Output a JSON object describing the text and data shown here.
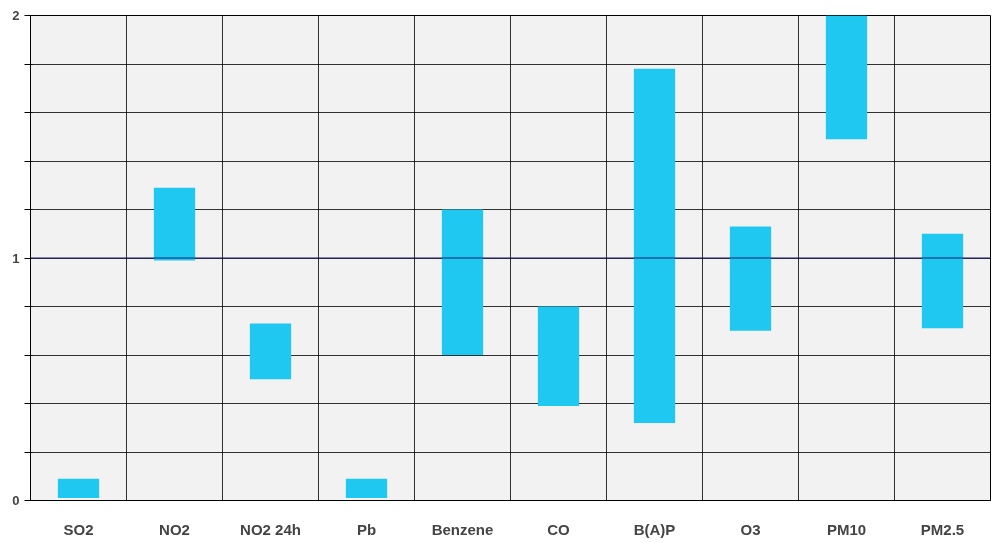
{
  "chart_data": {
    "type": "bar",
    "categories": [
      "SO2",
      "NO2",
      "NO2 24h",
      "Pb",
      "Benzene",
      "CO",
      "B(A)P",
      "O3",
      "PM10",
      "PM2.5"
    ],
    "base": [
      0.01,
      0.99,
      0.5,
      0.01,
      0.6,
      0.39,
      0.32,
      0.7,
      1.49,
      0.71
    ],
    "values": [
      0.08,
      0.3,
      0.23,
      0.08,
      0.6,
      0.41,
      1.46,
      0.43,
      0.51,
      0.39
    ],
    "color": "#1ec8f0",
    "ylim": [
      0,
      2
    ],
    "yticks": [
      0,
      {
        "value": 0.2,
        "label": null
      },
      {
        "value": 0.4,
        "label": null
      },
      {
        "value": 0.6,
        "label": null
      },
      {
        "value": 0.8,
        "label": null
      },
      1,
      {
        "value": 1.2,
        "label": null
      },
      {
        "value": 1.4,
        "label": null
      },
      {
        "value": 1.6,
        "label": null
      },
      {
        "value": 1.8,
        "label": null
      },
      2
    ],
    "grid": true,
    "ref_lines": [
      {
        "axis": "y",
        "value": 1,
        "color": "#1a1a6e"
      }
    ]
  }
}
